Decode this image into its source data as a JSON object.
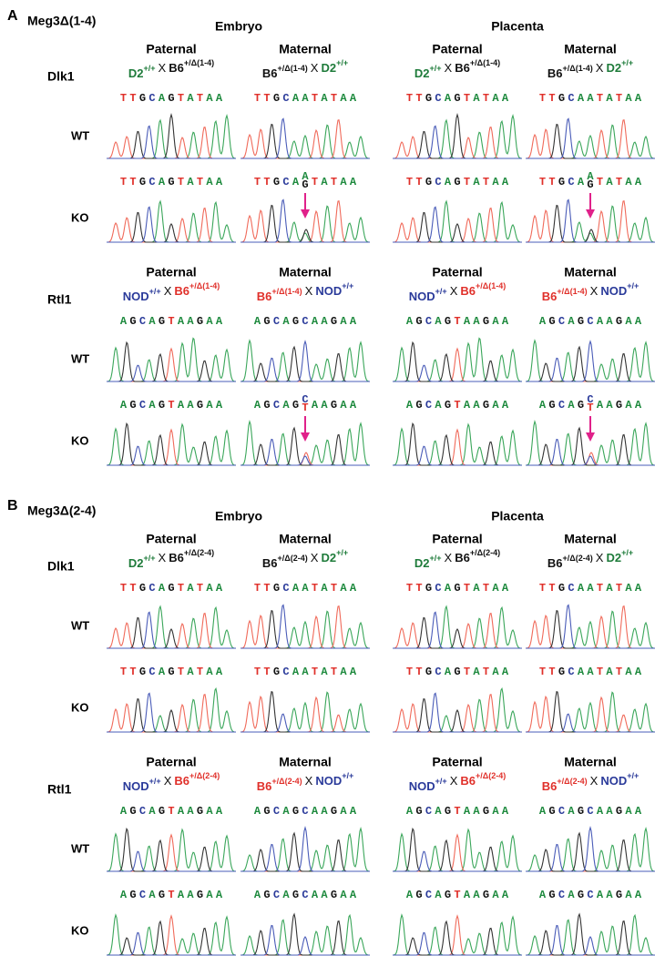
{
  "cross_symbol": "X",
  "row_labels": [
    "WT",
    "KO"
  ],
  "tissues": [
    "Embryo",
    "Placenta"
  ],
  "base_colors": {
    "A": "#1e8a3e",
    "T": "#e0302a",
    "G": "#111111",
    "C": "#2a3a9a"
  },
  "panels": [
    {
      "label": "A",
      "title": "Meg3Δ(1-4)",
      "genes": [
        {
          "name": "Dlk1",
          "columns": [
            {
              "parent": "Paternal",
              "cross": [
                {
                  "strain": "D2",
                  "genotype": "+/+",
                  "color": "#1e7b3a"
                },
                {
                  "strain": "B6",
                  "genotype": "+/Δ(1-4)",
                  "color": "#111111"
                }
              ],
              "sequences": [
                "TTGCAGTATAA",
                "TTGCAGTATAA"
              ]
            },
            {
              "parent": "Maternal",
              "cross": [
                {
                  "strain": "B6",
                  "genotype": "+/Δ(1-4)",
                  "color": "#111111"
                },
                {
                  "strain": "D2",
                  "genotype": "+/+",
                  "color": "#1e7b3a"
                }
              ],
              "sequences": [
                "TTGCAATATAA",
                {
                  "before": "TTGCA",
                  "top": "A",
                  "bottom": "G",
                  "after": "TATAA"
                }
              ]
            },
            {
              "parent": "Paternal",
              "cross": [
                {
                  "strain": "D2",
                  "genotype": "+/+",
                  "color": "#1e7b3a"
                },
                {
                  "strain": "B6",
                  "genotype": "+/Δ(1-4)",
                  "color": "#111111"
                }
              ],
              "sequences": [
                "TTGCAGTATAA",
                "TTGCAGTATAA"
              ]
            },
            {
              "parent": "Maternal",
              "cross": [
                {
                  "strain": "B6",
                  "genotype": "+/Δ(1-4)",
                  "color": "#111111"
                },
                {
                  "strain": "D2",
                  "genotype": "+/+",
                  "color": "#1e7b3a"
                }
              ],
              "sequences": [
                "TTGCAATATAA",
                {
                  "before": "TTGCA",
                  "top": "A",
                  "bottom": "G",
                  "after": "TATAA"
                }
              ]
            }
          ]
        },
        {
          "name": "Rtl1",
          "columns": [
            {
              "parent": "Paternal",
              "cross": [
                {
                  "strain": "NOD",
                  "genotype": "+/+",
                  "color": "#2a3a9a"
                },
                {
                  "strain": "B6",
                  "genotype": "+/Δ(1-4)",
                  "color": "#e0302a"
                }
              ],
              "sequences": [
                "AGCAGTAAGAA",
                "AGCAGTAAGAA"
              ]
            },
            {
              "parent": "Maternal",
              "cross": [
                {
                  "strain": "B6",
                  "genotype": "+/Δ(1-4)",
                  "color": "#e0302a"
                },
                {
                  "strain": "NOD",
                  "genotype": "+/+",
                  "color": "#2a3a9a"
                }
              ],
              "sequences": [
                "AGCAGCAAGAA",
                {
                  "before": "AGCAG",
                  "top": "C",
                  "bottom": "T",
                  "after": "AAGAA"
                }
              ]
            },
            {
              "parent": "Paternal",
              "cross": [
                {
                  "strain": "NOD",
                  "genotype": "+/+",
                  "color": "#2a3a9a"
                },
                {
                  "strain": "B6",
                  "genotype": "+/Δ(1-4)",
                  "color": "#e0302a"
                }
              ],
              "sequences": [
                "AGCAGTAAGAA",
                "AGCAGTAAGAA"
              ]
            },
            {
              "parent": "Maternal",
              "cross": [
                {
                  "strain": "B6",
                  "genotype": "+/Δ(1-4)",
                  "color": "#e0302a"
                },
                {
                  "strain": "NOD",
                  "genotype": "+/+",
                  "color": "#2a3a9a"
                }
              ],
              "sequences": [
                "AGCAGCAAGAA",
                {
                  "before": "AGCAG",
                  "top": "C",
                  "bottom": "T",
                  "after": "AAGAA"
                }
              ]
            }
          ]
        }
      ]
    },
    {
      "label": "B",
      "title": "Meg3Δ(2-4)",
      "genes": [
        {
          "name": "Dlk1",
          "columns": [
            {
              "parent": "Paternal",
              "cross": [
                {
                  "strain": "D2",
                  "genotype": "+/+",
                  "color": "#1e7b3a"
                },
                {
                  "strain": "B6",
                  "genotype": "+/Δ(2-4)",
                  "color": "#111111"
                }
              ],
              "sequences": [
                "TTGCAGTATAA",
                "TTGCAGTATAA"
              ]
            },
            {
              "parent": "Maternal",
              "cross": [
                {
                  "strain": "B6",
                  "genotype": "+/Δ(2-4)",
                  "color": "#111111"
                },
                {
                  "strain": "D2",
                  "genotype": "+/+",
                  "color": "#1e7b3a"
                }
              ],
              "sequences": [
                "TTGCAATATAA",
                "TTGCAATATAA"
              ]
            },
            {
              "parent": "Paternal",
              "cross": [
                {
                  "strain": "D2",
                  "genotype": "+/+",
                  "color": "#1e7b3a"
                },
                {
                  "strain": "B6",
                  "genotype": "+/Δ(2-4)",
                  "color": "#111111"
                }
              ],
              "sequences": [
                "TTGCAGTATAA",
                "TTGCAGTATAA"
              ]
            },
            {
              "parent": "Maternal",
              "cross": [
                {
                  "strain": "B6",
                  "genotype": "+/Δ(2-4)",
                  "color": "#111111"
                },
                {
                  "strain": "D2",
                  "genotype": "+/+",
                  "color": "#1e7b3a"
                }
              ],
              "sequences": [
                "TTGCAATATAA",
                "TTGCAATATAA"
              ]
            }
          ]
        },
        {
          "name": "Rtl1",
          "columns": [
            {
              "parent": "Paternal",
              "cross": [
                {
                  "strain": "NOD",
                  "genotype": "+/+",
                  "color": "#2a3a9a"
                },
                {
                  "strain": "B6",
                  "genotype": "+/Δ(2-4)",
                  "color": "#e0302a"
                }
              ],
              "sequences": [
                "AGCAGTAAGAA",
                "AGCAGTAAGAA"
              ]
            },
            {
              "parent": "Maternal",
              "cross": [
                {
                  "strain": "B6",
                  "genotype": "+/Δ(2-4)",
                  "color": "#e0302a"
                },
                {
                  "strain": "NOD",
                  "genotype": "+/+",
                  "color": "#2a3a9a"
                }
              ],
              "sequences": [
                "AGCAGCAAGAA",
                "AGCAGCAAGAA"
              ]
            },
            {
              "parent": "Paternal",
              "cross": [
                {
                  "strain": "NOD",
                  "genotype": "+/+",
                  "color": "#2a3a9a"
                },
                {
                  "strain": "B6",
                  "genotype": "+/Δ(2-4)",
                  "color": "#e0302a"
                }
              ],
              "sequences": [
                "AGCAGTAAGAA",
                "AGCAGTAAGAA"
              ]
            },
            {
              "parent": "Maternal",
              "cross": [
                {
                  "strain": "B6",
                  "genotype": "+/Δ(2-4)",
                  "color": "#e0302a"
                },
                {
                  "strain": "NOD",
                  "genotype": "+/+",
                  "color": "#2a3a9a"
                }
              ],
              "sequences": [
                "AGCAGCAAGAA",
                "AGCAGCAAGAA"
              ]
            }
          ]
        }
      ]
    }
  ]
}
